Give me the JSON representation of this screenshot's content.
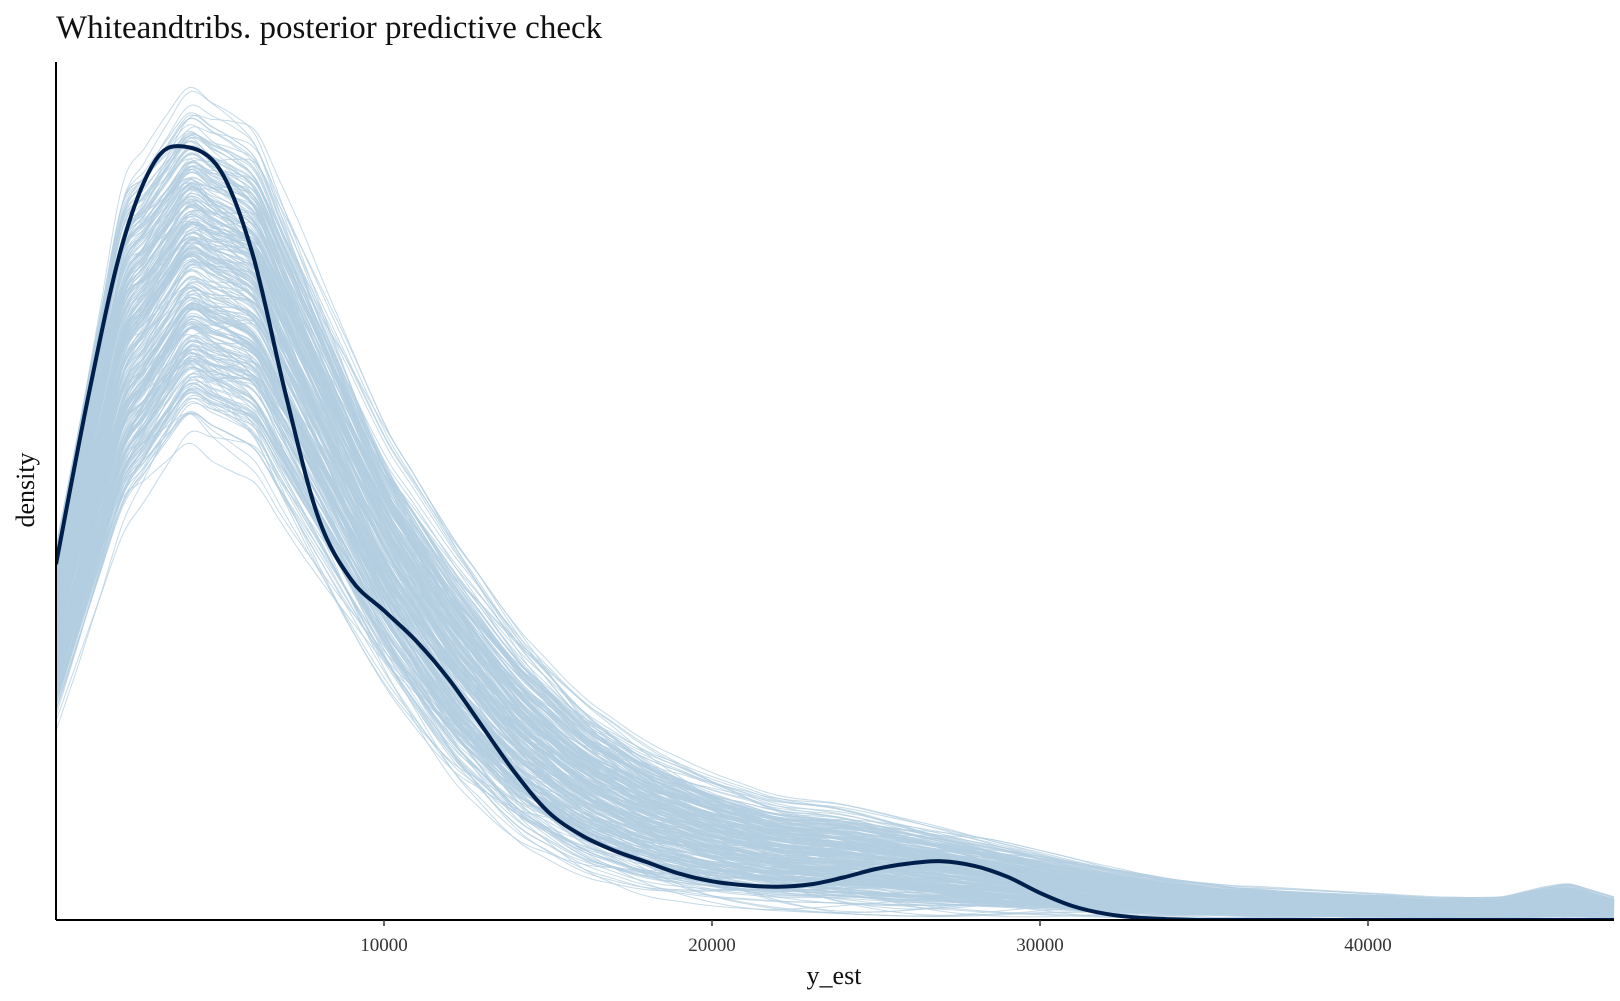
{
  "chart_data": {
    "type": "line",
    "title": "Whiteandtribs. posterior predictive check",
    "xlabel": "y_est",
    "ylabel": "density",
    "xlim": [
      0,
      47500
    ],
    "ylim": [
      0,
      1.13
    ],
    "x_ticks": [
      10000,
      20000,
      30000,
      40000
    ],
    "x_tick_labels": [
      "10000",
      "20000",
      "30000",
      "40000"
    ],
    "y_tick_labels": [],
    "grid": false,
    "legend": "none",
    "density_units": "relative (y axis unlabeled)",
    "colors": {
      "observed": "#011f4b",
      "replicates": "#b3cde0",
      "axis": "#000000"
    },
    "series": [
      {
        "role": "observed",
        "x": [
          0,
          1000,
          2000,
          3000,
          3900,
          5000,
          6000,
          7000,
          8000,
          9000,
          10000,
          11000,
          12000,
          13000,
          14000,
          15000,
          16000,
          17000,
          18000,
          19000,
          20000,
          21000,
          22000,
          23000,
          24000,
          25000,
          26000,
          27000,
          28000,
          29000,
          30000,
          31000,
          32000,
          33000,
          34000,
          35000,
          36000,
          38000,
          40000,
          42000,
          44000,
          46000,
          47500
        ],
        "values": [
          0.46,
          0.68,
          0.87,
          0.98,
          1.0,
          0.97,
          0.86,
          0.68,
          0.52,
          0.44,
          0.4,
          0.36,
          0.31,
          0.25,
          0.19,
          0.14,
          0.11,
          0.09,
          0.075,
          0.06,
          0.05,
          0.045,
          0.043,
          0.046,
          0.055,
          0.066,
          0.073,
          0.076,
          0.07,
          0.056,
          0.035,
          0.018,
          0.008,
          0.003,
          0.001,
          0.0,
          0.0,
          0.0,
          0.0,
          0.0,
          0.0,
          0.0,
          0.0
        ]
      }
    ],
    "replicate_band": {
      "x": [
        0,
        2000,
        4000,
        6000,
        8000,
        10000,
        12000,
        14000,
        16000,
        18000,
        20000,
        22000,
        24000,
        26000,
        28000,
        30000,
        32000,
        34000,
        36000,
        38000,
        40000,
        42000,
        44000,
        46000,
        47500
      ],
      "lower": [
        0.24,
        0.47,
        0.6,
        0.57,
        0.44,
        0.3,
        0.18,
        0.1,
        0.055,
        0.03,
        0.018,
        0.012,
        0.008,
        0.005,
        0.004,
        0.003,
        0.002,
        0.0015,
        0.001,
        0.001,
        0.001,
        0.0005,
        0.0,
        0.0,
        0.0
      ],
      "upper": [
        0.5,
        0.98,
        1.1,
        1.05,
        0.84,
        0.64,
        0.5,
        0.38,
        0.29,
        0.23,
        0.19,
        0.16,
        0.15,
        0.13,
        0.11,
        0.09,
        0.07,
        0.055,
        0.045,
        0.04,
        0.035,
        0.03,
        0.03,
        0.05,
        0.03
      ]
    }
  }
}
